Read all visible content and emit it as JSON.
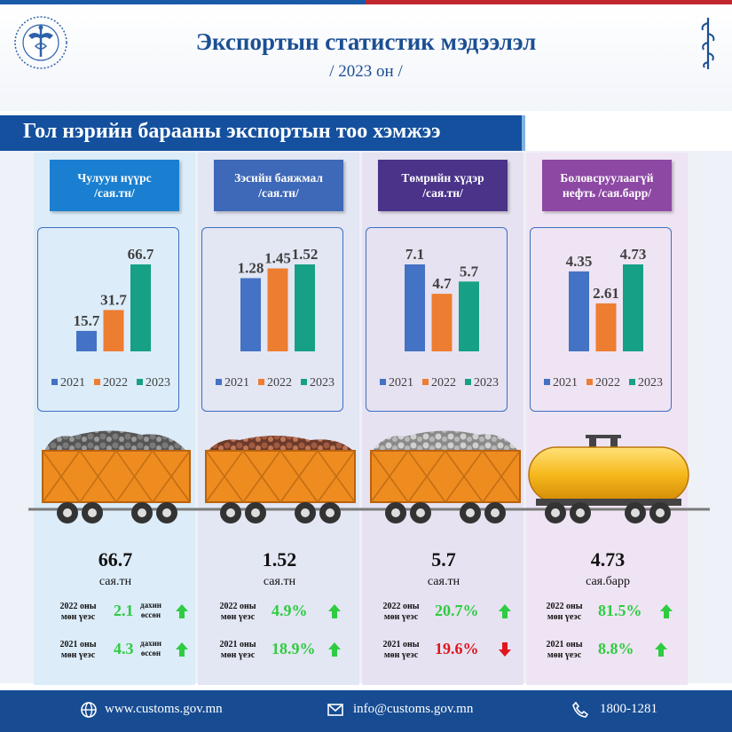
{
  "header": {
    "title": "Экспортын статистик мэдээлэл",
    "subtitle": "/ 2023 он /"
  },
  "section_title": "Гол нэрийн барааны экспортын тоо хэмжээ",
  "colors": {
    "series_2021": "#4472c4",
    "series_2022": "#ed7d31",
    "series_2023": "#16a085",
    "increase": "#2ecc40",
    "decrease": "#e0161e",
    "coal": "#1a7fd0",
    "copper": "#3e68b8",
    "iron": "#4a3389",
    "oil": "#8c48a3"
  },
  "legend": [
    "2021",
    "2022",
    "2023"
  ],
  "chart_data": [
    {
      "type": "bar",
      "title": "Чулуун нүүрс /сая.тн/",
      "categories": [
        "2021",
        "2022",
        "2023"
      ],
      "values": [
        15.7,
        31.7,
        66.7
      ],
      "value_labels": [
        "15.7",
        "31.7",
        "66.7"
      ]
    },
    {
      "type": "bar",
      "title": "Зэсийн баяжмал /сая.тн/",
      "categories": [
        "2021",
        "2022",
        "2023"
      ],
      "values": [
        1.28,
        1.45,
        1.52
      ],
      "value_labels": [
        "1.28",
        "1.45",
        "1.52"
      ]
    },
    {
      "type": "bar",
      "title": "Төмрийн хүдэр /сая.тн/",
      "categories": [
        "2021",
        "2022",
        "2023"
      ],
      "values": [
        7.1,
        4.7,
        5.7
      ],
      "value_labels": [
        "7.1",
        "4.7",
        "5.7"
      ]
    },
    {
      "type": "bar",
      "title": "Боловсруулаагүй нефть /сая.барр/",
      "categories": [
        "2021",
        "2022",
        "2023"
      ],
      "values": [
        4.35,
        2.61,
        4.73
      ],
      "value_labels": [
        "4.35",
        "2.61",
        "4.73"
      ]
    }
  ],
  "columns": [
    {
      "label": "Чулуун нүүрс /сая.тн/",
      "label_lines": [
        "Чулуун нүүрс",
        "/сая.тн/"
      ],
      "cargo": "coal",
      "value": "66.7",
      "unit": "сая.тн",
      "cmp": [
        {
          "label_lines": [
            "2022 оны",
            "мөн үеэс"
          ],
          "value": "2.1",
          "suffix_lines": [
            "дахин",
            "өссөн"
          ],
          "direction": "up"
        },
        {
          "label_lines": [
            "2021 оны",
            "мөн үеэс"
          ],
          "value": "4.3",
          "suffix_lines": [
            "дахин",
            "өссөн"
          ],
          "direction": "up"
        }
      ]
    },
    {
      "label": "Зэсийн баяжмал /сая.тн/",
      "label_lines": [
        "Зэсийн баяжмал",
        "/сая.тн/"
      ],
      "cargo": "copper",
      "value": "1.52",
      "unit": "сая.тн",
      "cmp": [
        {
          "label_lines": [
            "2022 оны",
            "мөн үеэс"
          ],
          "value": "4.9%",
          "suffix_lines": [],
          "direction": "up"
        },
        {
          "label_lines": [
            "2021 оны",
            "мөн үеэс"
          ],
          "value": "18.9%",
          "suffix_lines": [],
          "direction": "up"
        }
      ]
    },
    {
      "label": "Төмрийн хүдэр /сая.тн/",
      "label_lines": [
        "Төмрийн хүдэр",
        "/сая.тн/"
      ],
      "cargo": "iron",
      "value": "5.7",
      "unit": "сая.тн",
      "cmp": [
        {
          "label_lines": [
            "2022 оны",
            "мөн үеэс"
          ],
          "value": "20.7%",
          "suffix_lines": [],
          "direction": "up"
        },
        {
          "label_lines": [
            "2021 оны",
            "мөн үеэс"
          ],
          "value": "19.6%",
          "suffix_lines": [],
          "direction": "down"
        }
      ]
    },
    {
      "label": "Боловсруулаагүй нефть /сая.барр/",
      "label_lines": [
        "Боловсруулаагүй",
        "нефть /сая.барр/"
      ],
      "cargo": "oil",
      "value": "4.73",
      "unit": "сая.барр",
      "cmp": [
        {
          "label_lines": [
            "2022 оны",
            "мөн үеэс"
          ],
          "value": "81.5%",
          "suffix_lines": [],
          "direction": "up"
        },
        {
          "label_lines": [
            "2021 оны",
            "мөн үеэс"
          ],
          "value": "8.8%",
          "suffix_lines": [],
          "direction": "up"
        }
      ]
    }
  ],
  "footer": {
    "website": "www.customs.gov.mn",
    "email": "info@customs.gov.mn",
    "phone": "1800-1281",
    "icons": [
      "globe-icon",
      "mail-icon",
      "phone-icon"
    ]
  }
}
